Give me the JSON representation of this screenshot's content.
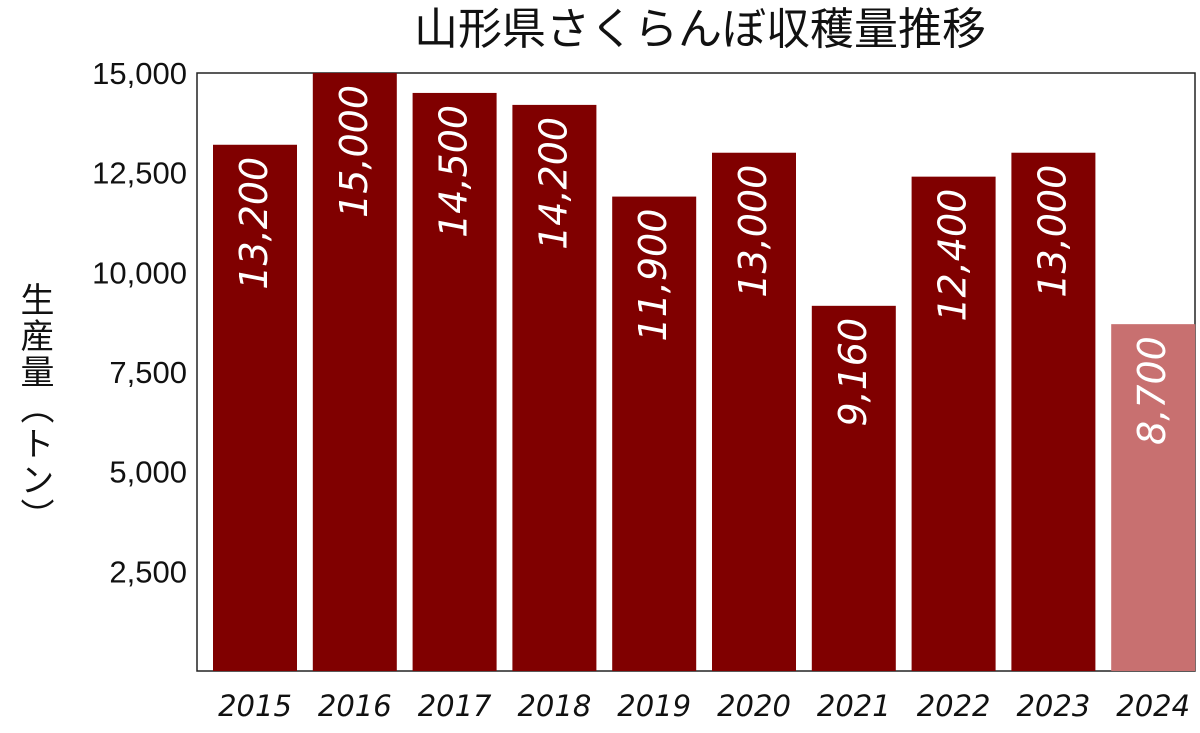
{
  "chart_data": {
    "type": "bar",
    "title": "山形県さくらんぼ収穫量推移",
    "ylabel": "生産量（トン）",
    "xlabel": "",
    "categories": [
      "2015",
      "2016",
      "2017",
      "2018",
      "2019",
      "2020",
      "2021",
      "2022",
      "2023",
      "2024"
    ],
    "values": [
      13200,
      15000,
      14500,
      14200,
      11900,
      13000,
      9160,
      12400,
      13000,
      8700
    ],
    "data_labels": [
      "13,200",
      "15,000",
      "14,500",
      "14,200",
      "11,900",
      "13,000",
      "9,160",
      "12,400",
      "13,000",
      "8,700"
    ],
    "ylim": [
      0,
      15000
    ],
    "yticks": [
      2500,
      5000,
      7500,
      10000,
      12500,
      15000
    ],
    "ytick_labels": [
      "2,500",
      "5,000",
      "7,500",
      "10,000",
      "12,500",
      "15,000"
    ],
    "bar_color": "#800000",
    "highlight_color": "#C87070",
    "highlight_index": 9,
    "grid": false,
    "legend": "none"
  }
}
